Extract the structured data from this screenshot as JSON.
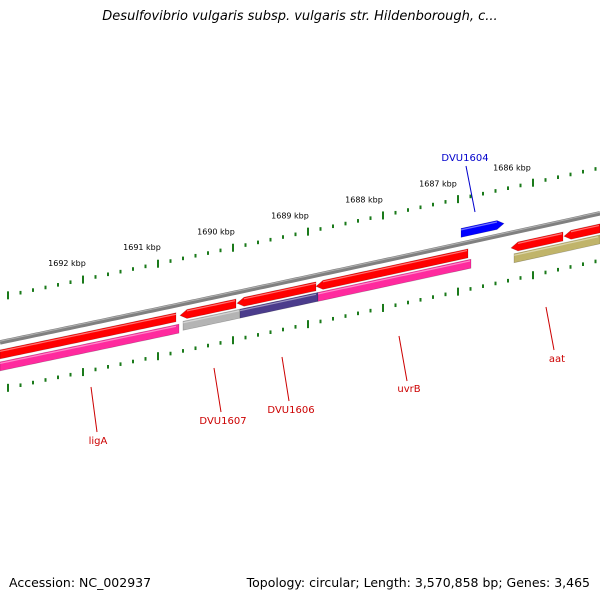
{
  "title": "Desulfovibrio vulgaris subsp. vulgaris str. Hildenborough, c...",
  "footer": {
    "accession": "Accession: NC_002937",
    "genome_stats": "Topology: circular; Length: 3,570,858 bp; Genes: 3,465"
  },
  "colors": {
    "backbone": "#808080",
    "cds_forward": "#ff0000",
    "cds_reverse": "#ff0000",
    "gene_bar": "#ff2a9e",
    "pseudo_bar": "#b4b4b4",
    "operon_bar": "#4b3c8c",
    "olive_bar": "#c0b46a",
    "blue_feature": "#0000ff",
    "tick": "#1a7a1a",
    "label_red": "#cc0000",
    "label_blue": "#0000cc"
  },
  "scale_ticks": [
    {
      "label": "1692 kbp"
    },
    {
      "label": "1691 kbp"
    },
    {
      "label": "1690 kbp"
    },
    {
      "label": "1689 kbp"
    },
    {
      "label": "1688 kbp"
    },
    {
      "label": "1687 kbp"
    },
    {
      "label": "1686 kbp"
    }
  ],
  "gene_labels": [
    {
      "name": "ligA",
      "color": "#cc0000"
    },
    {
      "name": "DVU1607",
      "color": "#cc0000"
    },
    {
      "name": "DVU1606",
      "color": "#cc0000"
    },
    {
      "name": "uvrB",
      "color": "#cc0000"
    },
    {
      "name": "aat",
      "color": "#cc0000"
    },
    {
      "name": "DVU1604",
      "color": "#0000cc"
    }
  ]
}
